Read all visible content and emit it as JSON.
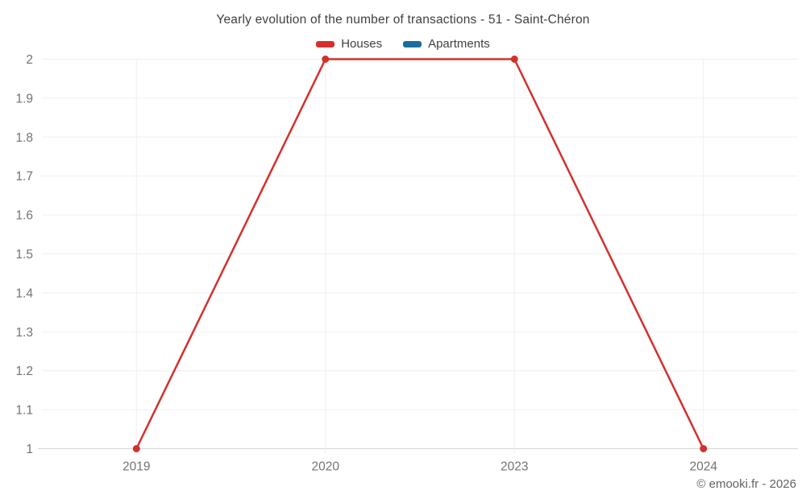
{
  "header": {
    "title": "Yearly evolution of the number of transactions - 51 - Saint-Chéron"
  },
  "legend": [
    {
      "label": "Houses",
      "color": "#d3302c"
    },
    {
      "label": "Apartments",
      "color": "#1a6d9c"
    }
  ],
  "watermark": "© emooki.fr - 2026",
  "chart_data": {
    "type": "line",
    "title": "Yearly evolution of the number of transactions - 51 - Saint-Chéron",
    "categories": [
      "2019",
      "2020",
      "2023",
      "2024"
    ],
    "series": [
      {
        "name": "Houses",
        "color": "#d3302c",
        "values": [
          1,
          2,
          2,
          1
        ]
      },
      {
        "name": "Apartments",
        "color": "#1a6d9c",
        "values": []
      }
    ],
    "xlabel": "",
    "ylabel": "",
    "ylim": [
      1,
      2
    ],
    "ytick_step": 0.1,
    "yticks_top_to_bottom": [
      "2",
      "1.9",
      "1.8",
      "1.7",
      "1.6",
      "1.5",
      "1.4",
      "1.3",
      "1.2",
      "1.1",
      "1"
    ],
    "grid": true,
    "legend_position": "top",
    "style": {
      "grid_color": "#efefef",
      "axis_line_color": "#d4d4d4",
      "tick_label_color": "#737373",
      "marker_radius": 4.5,
      "line_width": 2.5
    }
  }
}
